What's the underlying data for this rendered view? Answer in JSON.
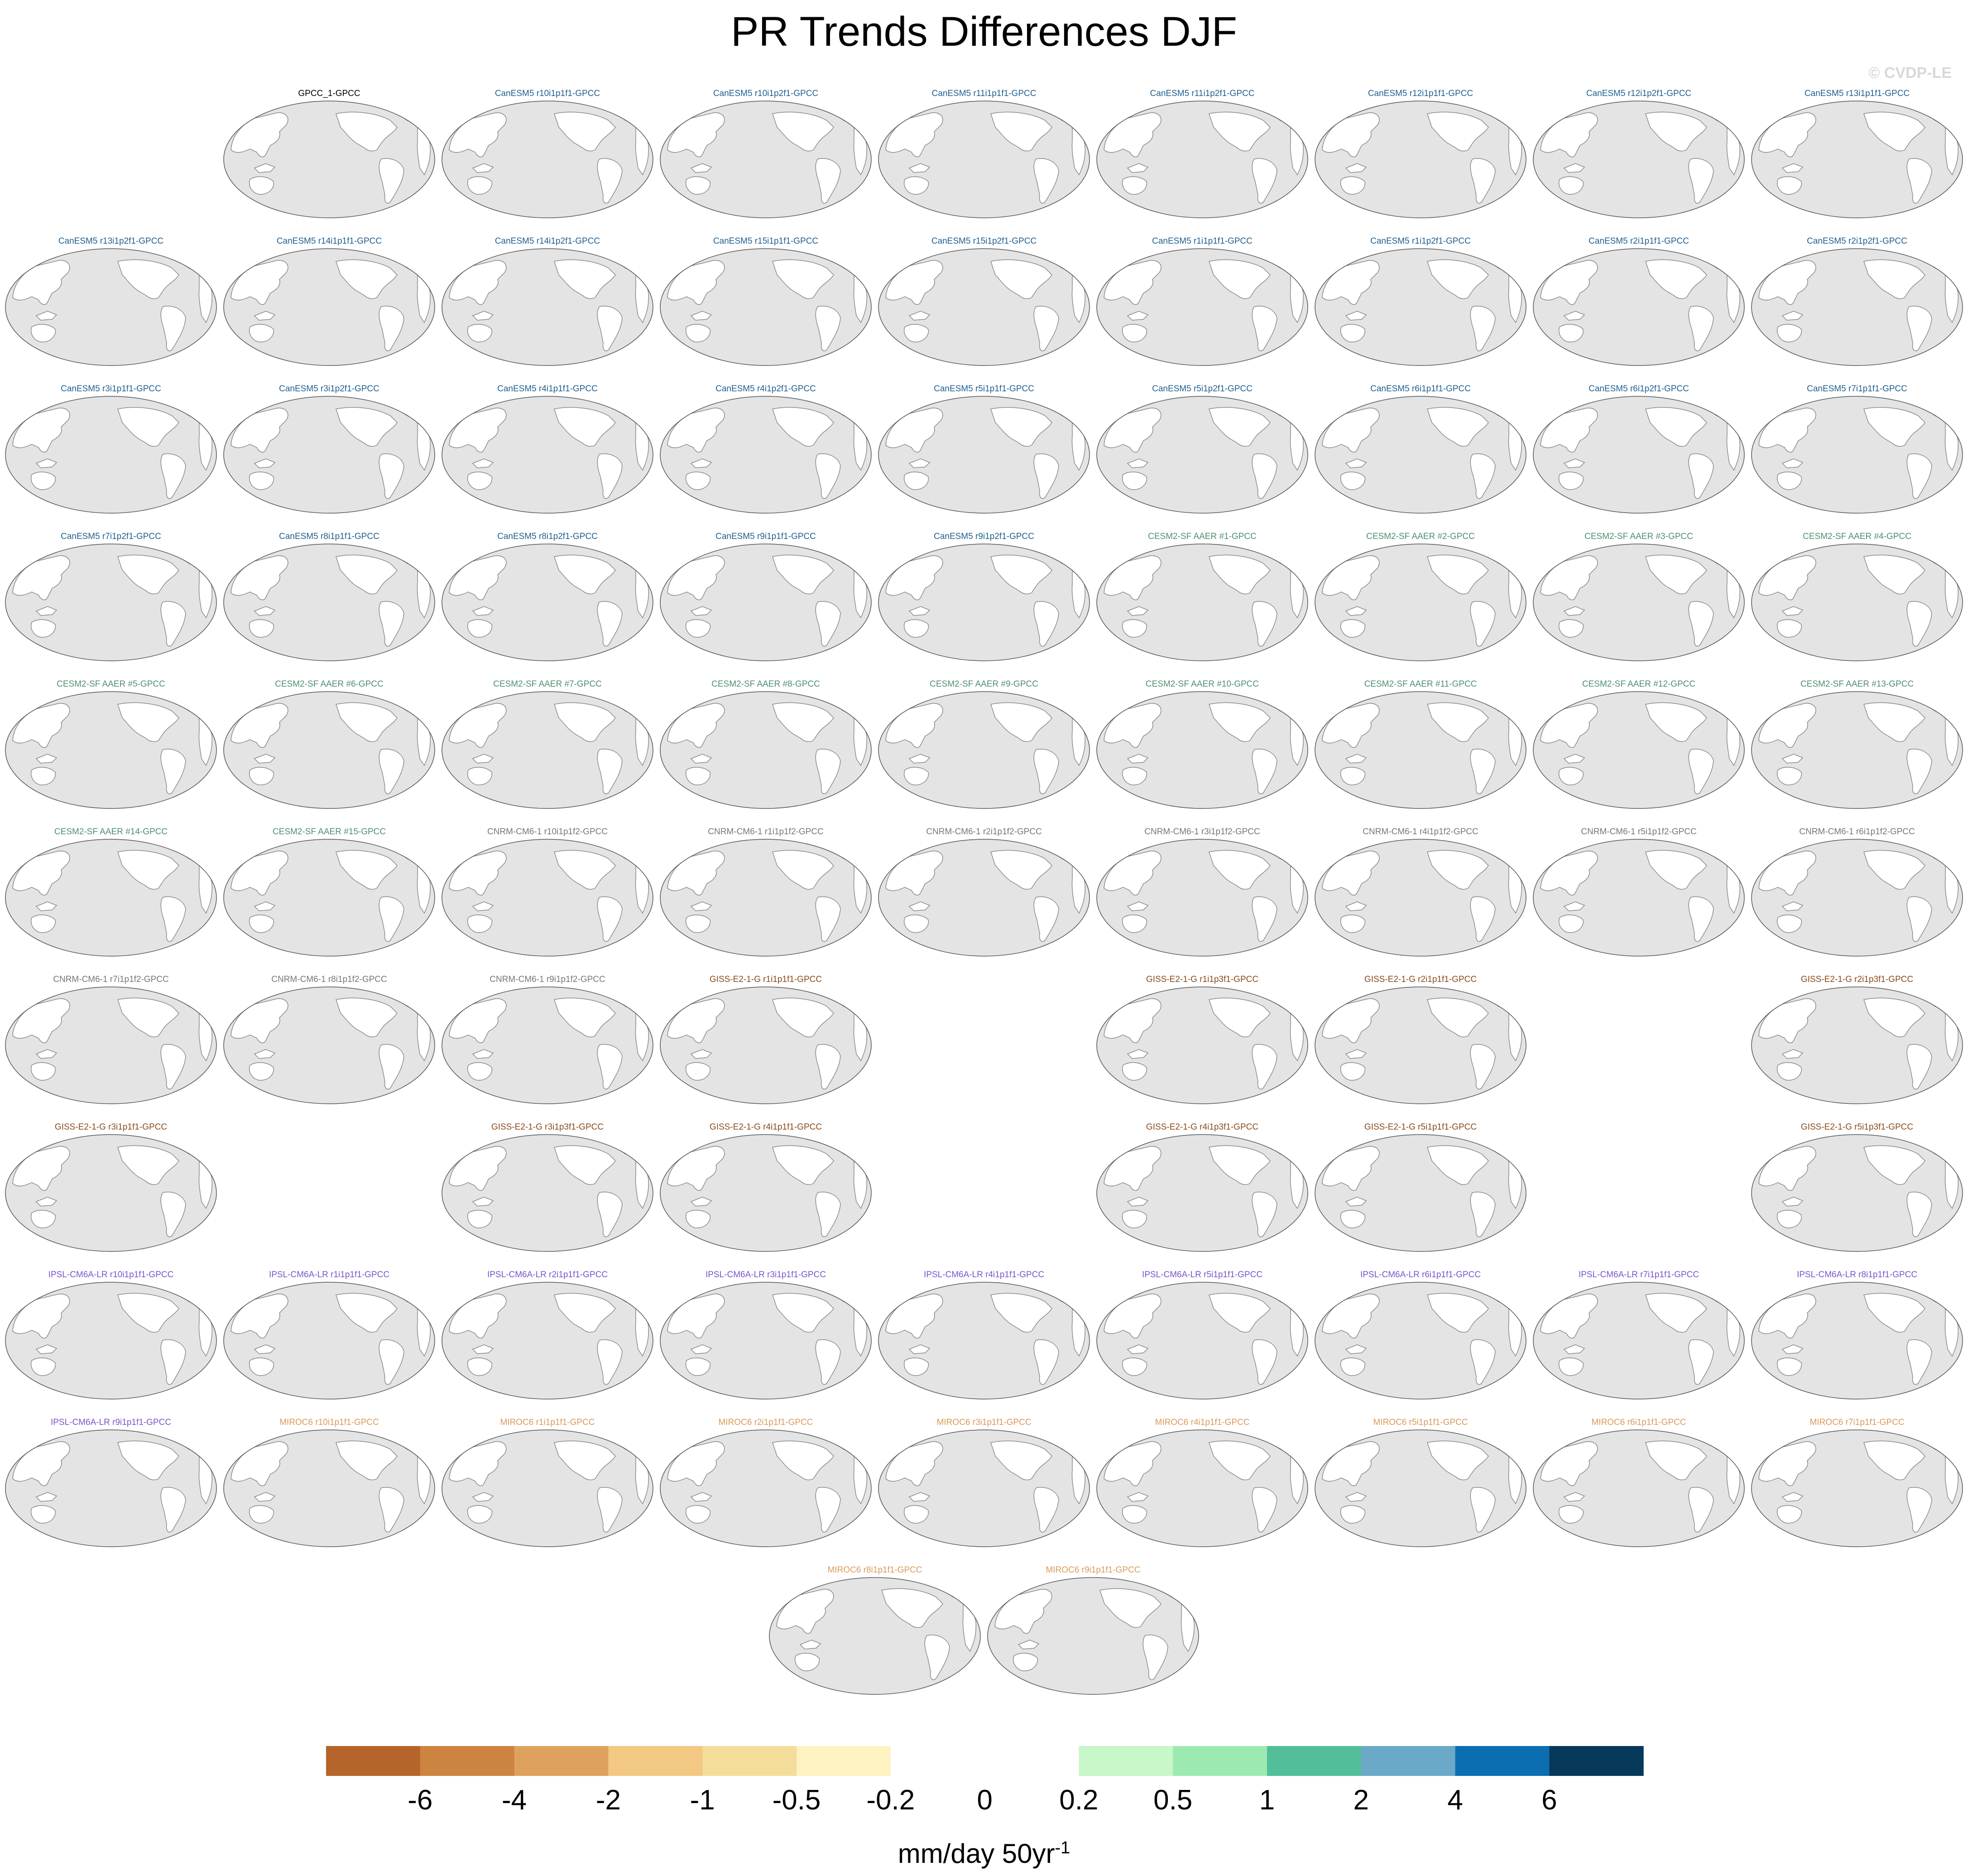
{
  "title": "PR Trends Differences DJF",
  "copyright": "© CVDP-LE",
  "panels": [
    {
      "label": "GPCC_1-GPCC",
      "group": "obs",
      "col": 1,
      "row": 0
    },
    {
      "label": "CanESM5 r10i1p1f1-GPCC",
      "group": "canesm",
      "col": 2,
      "row": 0
    },
    {
      "label": "CanESM5 r10i1p2f1-GPCC",
      "group": "canesm",
      "col": 3,
      "row": 0
    },
    {
      "label": "CanESM5 r11i1p1f1-GPCC",
      "group": "canesm",
      "col": 4,
      "row": 0
    },
    {
      "label": "CanESM5 r11i1p2f1-GPCC",
      "group": "canesm",
      "col": 5,
      "row": 0
    },
    {
      "label": "CanESM5 r12i1p1f1-GPCC",
      "group": "canesm",
      "col": 6,
      "row": 0
    },
    {
      "label": "CanESM5 r12i1p2f1-GPCC",
      "group": "canesm",
      "col": 7,
      "row": 0
    },
    {
      "label": "CanESM5 r13i1p1f1-GPCC",
      "group": "canesm",
      "col": 8,
      "row": 0
    },
    {
      "label": "CanESM5 r13i1p2f1-GPCC",
      "group": "canesm",
      "col": 0,
      "row": 1
    },
    {
      "label": "CanESM5 r14i1p1f1-GPCC",
      "group": "canesm",
      "col": 1,
      "row": 1
    },
    {
      "label": "CanESM5 r14i1p2f1-GPCC",
      "group": "canesm",
      "col": 2,
      "row": 1
    },
    {
      "label": "CanESM5 r15i1p1f1-GPCC",
      "group": "canesm",
      "col": 3,
      "row": 1
    },
    {
      "label": "CanESM5 r15i1p2f1-GPCC",
      "group": "canesm",
      "col": 4,
      "row": 1
    },
    {
      "label": "CanESM5 r1i1p1f1-GPCC",
      "group": "canesm",
      "col": 5,
      "row": 1
    },
    {
      "label": "CanESM5 r1i1p2f1-GPCC",
      "group": "canesm",
      "col": 6,
      "row": 1
    },
    {
      "label": "CanESM5 r2i1p1f1-GPCC",
      "group": "canesm",
      "col": 7,
      "row": 1
    },
    {
      "label": "CanESM5 r2i1p2f1-GPCC",
      "group": "canesm",
      "col": 8,
      "row": 1
    },
    {
      "label": "CanESM5 r3i1p1f1-GPCC",
      "group": "canesm",
      "col": 0,
      "row": 2
    },
    {
      "label": "CanESM5 r3i1p2f1-GPCC",
      "group": "canesm",
      "col": 1,
      "row": 2
    },
    {
      "label": "CanESM5 r4i1p1f1-GPCC",
      "group": "canesm",
      "col": 2,
      "row": 2
    },
    {
      "label": "CanESM5 r4i1p2f1-GPCC",
      "group": "canesm",
      "col": 3,
      "row": 2
    },
    {
      "label": "CanESM5 r5i1p1f1-GPCC",
      "group": "canesm",
      "col": 4,
      "row": 2
    },
    {
      "label": "CanESM5 r5i1p2f1-GPCC",
      "group": "canesm",
      "col": 5,
      "row": 2
    },
    {
      "label": "CanESM5 r6i1p1f1-GPCC",
      "group": "canesm",
      "col": 6,
      "row": 2
    },
    {
      "label": "CanESM5 r6i1p2f1-GPCC",
      "group": "canesm",
      "col": 7,
      "row": 2
    },
    {
      "label": "CanESM5 r7i1p1f1-GPCC",
      "group": "canesm",
      "col": 8,
      "row": 2
    },
    {
      "label": "CanESM5 r7i1p2f1-GPCC",
      "group": "canesm",
      "col": 0,
      "row": 3
    },
    {
      "label": "CanESM5 r8i1p1f1-GPCC",
      "group": "canesm",
      "col": 1,
      "row": 3
    },
    {
      "label": "CanESM5 r8i1p2f1-GPCC",
      "group": "canesm",
      "col": 2,
      "row": 3
    },
    {
      "label": "CanESM5 r9i1p1f1-GPCC",
      "group": "canesm",
      "col": 3,
      "row": 3
    },
    {
      "label": "CanESM5 r9i1p2f1-GPCC",
      "group": "canesm",
      "col": 4,
      "row": 3
    },
    {
      "label": "CESM2-SF AAER #1-GPCC",
      "group": "cesm",
      "col": 5,
      "row": 3
    },
    {
      "label": "CESM2-SF AAER #2-GPCC",
      "group": "cesm",
      "col": 6,
      "row": 3
    },
    {
      "label": "CESM2-SF AAER #3-GPCC",
      "group": "cesm",
      "col": 7,
      "row": 3
    },
    {
      "label": "CESM2-SF AAER #4-GPCC",
      "group": "cesm",
      "col": 8,
      "row": 3
    },
    {
      "label": "CESM2-SF AAER #5-GPCC",
      "group": "cesm",
      "col": 0,
      "row": 4
    },
    {
      "label": "CESM2-SF AAER #6-GPCC",
      "group": "cesm",
      "col": 1,
      "row": 4
    },
    {
      "label": "CESM2-SF AAER #7-GPCC",
      "group": "cesm",
      "col": 2,
      "row": 4
    },
    {
      "label": "CESM2-SF AAER #8-GPCC",
      "group": "cesm",
      "col": 3,
      "row": 4
    },
    {
      "label": "CESM2-SF AAER #9-GPCC",
      "group": "cesm",
      "col": 4,
      "row": 4
    },
    {
      "label": "CESM2-SF AAER #10-GPCC",
      "group": "cesm",
      "col": 5,
      "row": 4
    },
    {
      "label": "CESM2-SF AAER #11-GPCC",
      "group": "cesm",
      "col": 6,
      "row": 4
    },
    {
      "label": "CESM2-SF AAER #12-GPCC",
      "group": "cesm",
      "col": 7,
      "row": 4
    },
    {
      "label": "CESM2-SF AAER #13-GPCC",
      "group": "cesm",
      "col": 8,
      "row": 4
    },
    {
      "label": "CESM2-SF AAER #14-GPCC",
      "group": "cesm",
      "col": 0,
      "row": 5
    },
    {
      "label": "CESM2-SF AAER #15-GPCC",
      "group": "cesm",
      "col": 1,
      "row": 5
    },
    {
      "label": "CNRM-CM6-1 r10i1p1f2-GPCC",
      "group": "cnrm",
      "col": 2,
      "row": 5
    },
    {
      "label": "CNRM-CM6-1 r1i1p1f2-GPCC",
      "group": "cnrm",
      "col": 3,
      "row": 5
    },
    {
      "label": "CNRM-CM6-1 r2i1p1f2-GPCC",
      "group": "cnrm",
      "col": 4,
      "row": 5
    },
    {
      "label": "CNRM-CM6-1 r3i1p1f2-GPCC",
      "group": "cnrm",
      "col": 5,
      "row": 5
    },
    {
      "label": "CNRM-CM6-1 r4i1p1f2-GPCC",
      "group": "cnrm",
      "col": 6,
      "row": 5
    },
    {
      "label": "CNRM-CM6-1 r5i1p1f2-GPCC",
      "group": "cnrm",
      "col": 7,
      "row": 5
    },
    {
      "label": "CNRM-CM6-1 r6i1p1f2-GPCC",
      "group": "cnrm",
      "col": 8,
      "row": 5
    },
    {
      "label": "CNRM-CM6-1 r7i1p1f2-GPCC",
      "group": "cnrm",
      "col": 0,
      "row": 6
    },
    {
      "label": "CNRM-CM6-1 r8i1p1f2-GPCC",
      "group": "cnrm",
      "col": 1,
      "row": 6
    },
    {
      "label": "CNRM-CM6-1 r9i1p1f2-GPCC",
      "group": "cnrm",
      "col": 2,
      "row": 6
    },
    {
      "label": "GISS-E2-1-G r1i1p1f1-GPCC",
      "group": "giss",
      "col": 3,
      "row": 6
    },
    {
      "label": "GISS-E2-1-G r1i1p3f1-GPCC",
      "group": "giss",
      "col": 5,
      "row": 6
    },
    {
      "label": "GISS-E2-1-G r2i1p1f1-GPCC",
      "group": "giss",
      "col": 6,
      "row": 6
    },
    {
      "label": "GISS-E2-1-G r2i1p3f1-GPCC",
      "group": "giss",
      "col": 8,
      "row": 6
    },
    {
      "label": "GISS-E2-1-G r3i1p1f1-GPCC",
      "group": "giss",
      "col": 0,
      "row": 7
    },
    {
      "label": "GISS-E2-1-G r3i1p3f1-GPCC",
      "group": "giss",
      "col": 2,
      "row": 7
    },
    {
      "label": "GISS-E2-1-G r4i1p1f1-GPCC",
      "group": "giss",
      "col": 3,
      "row": 7
    },
    {
      "label": "GISS-E2-1-G r4i1p3f1-GPCC",
      "group": "giss",
      "col": 5,
      "row": 7
    },
    {
      "label": "GISS-E2-1-G r5i1p1f1-GPCC",
      "group": "giss",
      "col": 6,
      "row": 7
    },
    {
      "label": "GISS-E2-1-G r5i1p3f1-GPCC",
      "group": "giss",
      "col": 8,
      "row": 7
    },
    {
      "label": "IPSL-CM6A-LR r10i1p1f1-GPCC",
      "group": "ipsl",
      "col": 0,
      "row": 8
    },
    {
      "label": "IPSL-CM6A-LR r1i1p1f1-GPCC",
      "group": "ipsl",
      "col": 1,
      "row": 8
    },
    {
      "label": "IPSL-CM6A-LR r2i1p1f1-GPCC",
      "group": "ipsl",
      "col": 2,
      "row": 8
    },
    {
      "label": "IPSL-CM6A-LR r3i1p1f1-GPCC",
      "group": "ipsl",
      "col": 3,
      "row": 8
    },
    {
      "label": "IPSL-CM6A-LR r4i1p1f1-GPCC",
      "group": "ipsl",
      "col": 4,
      "row": 8
    },
    {
      "label": "IPSL-CM6A-LR r5i1p1f1-GPCC",
      "group": "ipsl",
      "col": 5,
      "row": 8
    },
    {
      "label": "IPSL-CM6A-LR r6i1p1f1-GPCC",
      "group": "ipsl",
      "col": 6,
      "row": 8
    },
    {
      "label": "IPSL-CM6A-LR r7i1p1f1-GPCC",
      "group": "ipsl",
      "col": 7,
      "row": 8
    },
    {
      "label": "IPSL-CM6A-LR r8i1p1f1-GPCC",
      "group": "ipsl",
      "col": 8,
      "row": 8
    },
    {
      "label": "IPSL-CM6A-LR r9i1p1f1-GPCC",
      "group": "ipsl",
      "col": 0,
      "row": 9
    },
    {
      "label": "MIROC6 r10i1p1f1-GPCC",
      "group": "miroc",
      "col": 1,
      "row": 9
    },
    {
      "label": "MIROC6 r1i1p1f1-GPCC",
      "group": "miroc",
      "col": 2,
      "row": 9
    },
    {
      "label": "MIROC6 r2i1p1f1-GPCC",
      "group": "miroc",
      "col": 3,
      "row": 9
    },
    {
      "label": "MIROC6 r3i1p1f1-GPCC",
      "group": "miroc",
      "col": 4,
      "row": 9
    },
    {
      "label": "MIROC6 r4i1p1f1-GPCC",
      "group": "miroc",
      "col": 5,
      "row": 9
    },
    {
      "label": "MIROC6 r5i1p1f1-GPCC",
      "group": "miroc",
      "col": 6,
      "row": 9
    },
    {
      "label": "MIROC6 r6i1p1f1-GPCC",
      "group": "miroc",
      "col": 7,
      "row": 9
    },
    {
      "label": "MIROC6 r7i1p1f1-GPCC",
      "group": "miroc",
      "col": 8,
      "row": 9
    },
    {
      "label": "MIROC6 r8i1p1f1-GPCC",
      "group": "miroc",
      "col": 3.5,
      "row": 10
    },
    {
      "label": "MIROC6 r9i1p1f1-GPCC",
      "group": "miroc",
      "col": 4.5,
      "row": 10
    }
  ],
  "group_colors": {
    "obs": "#000000",
    "canesm": "#1f5f8f",
    "cesm": "#4f8f6f",
    "cnrm": "#777777",
    "giss": "#8a4a1a",
    "ipsl": "#7b55c8",
    "miroc": "#d99a5a"
  },
  "map_colors": {
    "ocean": "#e4e4e4",
    "land": "#ffffff",
    "coast": "#8a8a8a"
  },
  "colorbar": {
    "unit_label": "mm/day 50yr",
    "unit_exponent": "-1",
    "ticks": [
      "-6",
      "-4",
      "-2",
      "-1",
      "-0.5",
      "-0.2",
      "0",
      "0.2",
      "0.5",
      "1",
      "2",
      "4",
      "6"
    ],
    "colors": [
      "#b5652a",
      "#cc8440",
      "#dea25e",
      "#f2c882",
      "#f4dc9a",
      "#fdf2c0",
      "#ffffff",
      "#ffffff",
      "#c8f7c9",
      "#9ceab2",
      "#52bf9a",
      "#6aa9c8",
      "#0b6eb0",
      "#06385a"
    ]
  }
}
